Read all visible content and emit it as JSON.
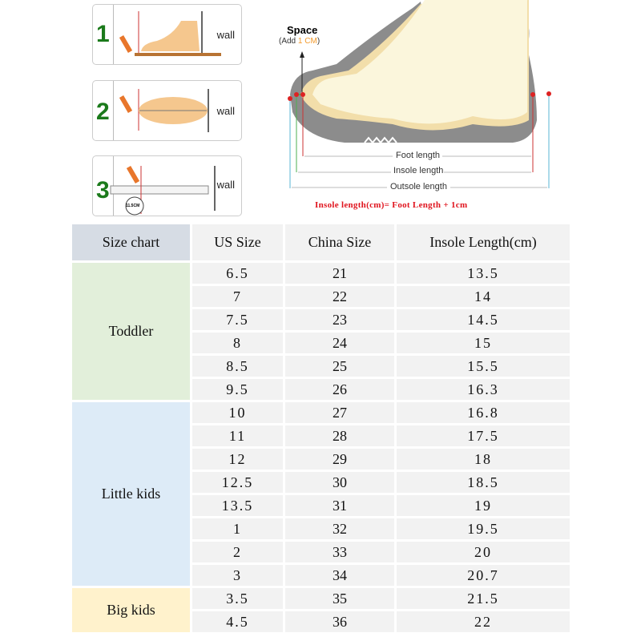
{
  "steps": [
    {
      "number": "1",
      "wall_label": "wall"
    },
    {
      "number": "2",
      "wall_label": "wall"
    },
    {
      "number": "3",
      "wall_label": "wall",
      "ruler_reading": "11.5CM"
    }
  ],
  "diagram": {
    "space_label": "Space",
    "add_prefix": "(Add ",
    "add_value": "1 CM",
    "add_suffix": ")",
    "foot_length": "Foot length",
    "insole_length": "Insole length",
    "outsole_length": "Outsole length",
    "formula": "Insole length(cm)= Foot Length + 1cm",
    "colors": {
      "add_value": "#f39a2b",
      "formula": "#e0141e"
    }
  },
  "table": {
    "headers": [
      "Size chart",
      "US Size",
      "China Size",
      "Insole Length(cm)"
    ],
    "groups": [
      {
        "label": "Toddler",
        "color": "#e2efda",
        "rows": [
          [
            "6.5",
            "21",
            "13.5"
          ],
          [
            "7",
            "22",
            "14"
          ],
          [
            "7.5",
            "23",
            "14.5"
          ],
          [
            "8",
            "24",
            "15"
          ],
          [
            "8.5",
            "25",
            "15.5"
          ],
          [
            "9.5",
            "26",
            "16.3"
          ]
        ]
      },
      {
        "label": "Little kids",
        "color": "#ddebf7",
        "rows": [
          [
            "10",
            "27",
            "16.8"
          ],
          [
            "11",
            "28",
            "17.5"
          ],
          [
            "12",
            "29",
            "18"
          ],
          [
            "12.5",
            "30",
            "18.5"
          ],
          [
            "13.5",
            "31",
            "19"
          ],
          [
            "1",
            "32",
            "19.5"
          ],
          [
            "2",
            "33",
            "20"
          ],
          [
            "3",
            "34",
            "20.7"
          ]
        ]
      },
      {
        "label": "Big kids",
        "color": "#fff2cc",
        "rows": [
          [
            "3.5",
            "35",
            "21.5"
          ],
          [
            "4.5",
            "36",
            "22"
          ]
        ]
      }
    ],
    "header_first_color": "#d6dce4"
  }
}
